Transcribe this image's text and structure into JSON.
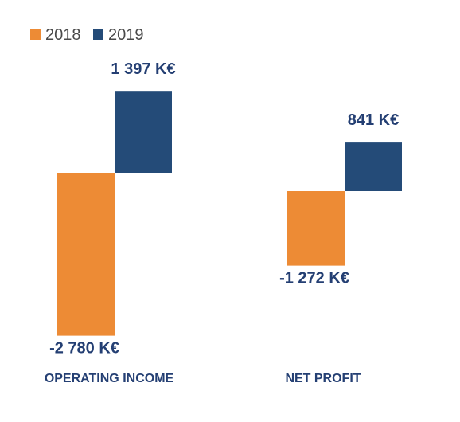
{
  "chart_data": {
    "type": "bar",
    "categories": [
      "OPERATING INCOME",
      "NET PROFIT"
    ],
    "series": [
      {
        "name": "2018",
        "values": [
          -2780,
          -1272
        ],
        "labels": [
          "-2 780 K€",
          "-1 272 K€"
        ],
        "color": "#ED8B35"
      },
      {
        "name": "2019",
        "values": [
          1397,
          841
        ],
        "labels": [
          "1 397 K€",
          "841 K€"
        ],
        "color": "#244B78"
      }
    ],
    "unit": "K€",
    "label_color": "#243F73",
    "grid": false,
    "legend_position": "top-left"
  }
}
